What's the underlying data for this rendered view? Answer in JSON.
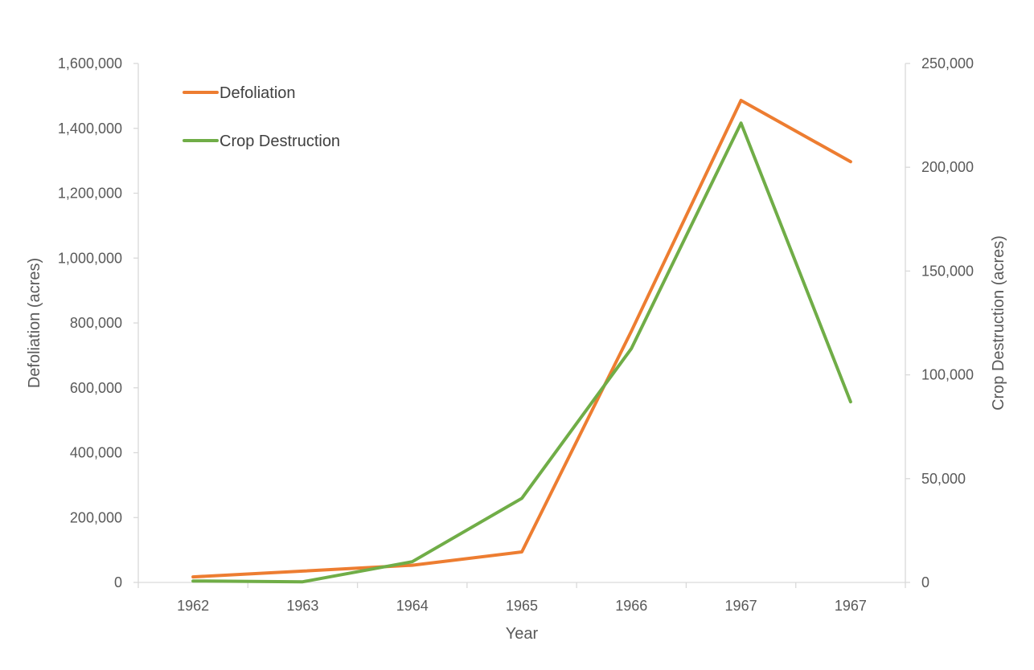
{
  "chart_data": {
    "type": "line",
    "title": "",
    "xlabel": "Year",
    "ylabel": "Defoliation (acres)",
    "y2label": "Crop Destruction (acres)",
    "categories": [
      "1962",
      "1963",
      "1964",
      "1965",
      "1966",
      "1967",
      "1967"
    ],
    "ylim": [
      0,
      1600000
    ],
    "y2lim": [
      0,
      250000
    ],
    "yticks": [
      "0",
      "200,000",
      "400,000",
      "600,000",
      "800,000",
      "1,000,000",
      "1,200,000",
      "1,400,000",
      "1,600,000"
    ],
    "y2ticks": [
      "0",
      "50,000",
      "100,000",
      "150,000",
      "200,000",
      "250,000"
    ],
    "grid": false,
    "legend_position": "top-left",
    "series": [
      {
        "name": "Defoliation",
        "axis": "left",
        "color": "#ED7D31",
        "values": [
          17000,
          35000,
          53000,
          94000,
          775000,
          1486000,
          1297000
        ]
      },
      {
        "name": "Crop Destruction",
        "axis": "right",
        "color": "#70AD47",
        "values": [
          700,
          300,
          10000,
          40500,
          112700,
          221300,
          87000
        ]
      }
    ]
  }
}
